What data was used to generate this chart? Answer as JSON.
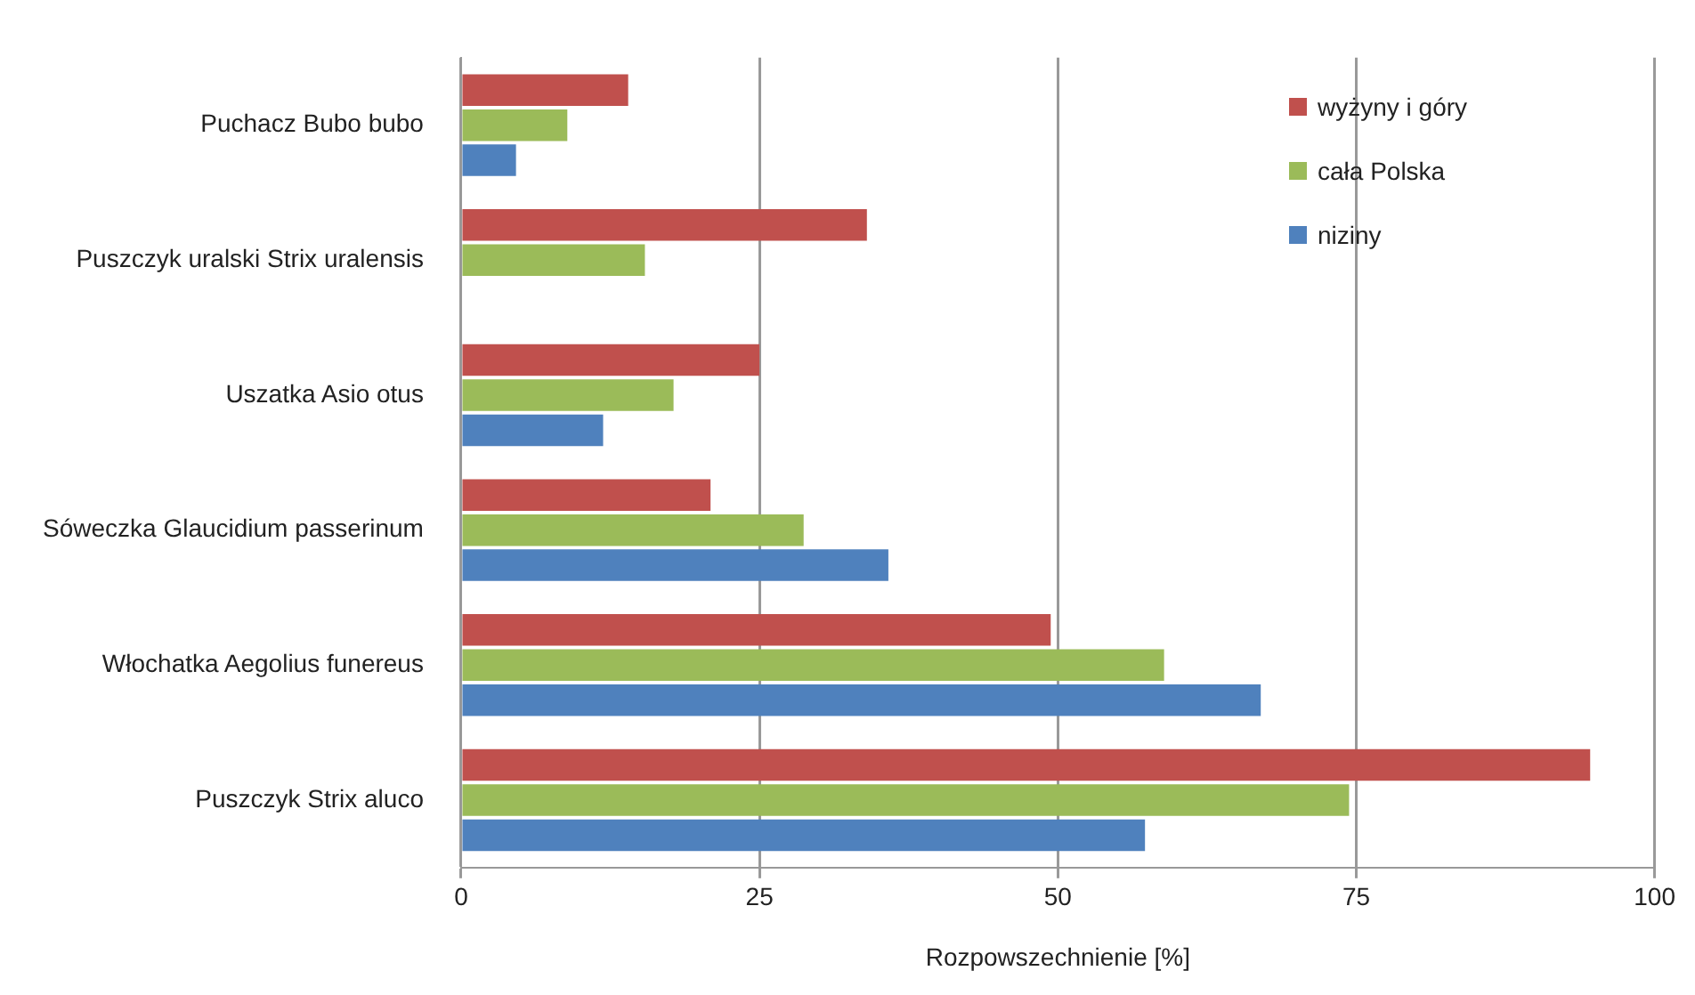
{
  "chart_data": {
    "type": "bar",
    "orientation": "horizontal",
    "xlabel": "Rozpowszechnienie [%]",
    "categories": [
      "Puchacz Bubo bubo",
      "Puszczyk uralski Strix uralensis",
      "Uszatka Asio otus",
      "Sóweczka Glaucidium passerinum",
      "Włochatka Aegolius funereus",
      "Puszczyk Strix aluco"
    ],
    "series": [
      {
        "name": "wyżyny i góry",
        "color": "#c0504d",
        "values": [
          14,
          34,
          25,
          20.9,
          49.4,
          94.6
        ]
      },
      {
        "name": "cała Polska",
        "color": "#9bbb59",
        "values": [
          8.9,
          15.4,
          17.8,
          28.7,
          58.9,
          74.4
        ]
      },
      {
        "name": "niziny",
        "color": "#4f81bd",
        "values": [
          4.6,
          null,
          11.9,
          35.8,
          67,
          57.3
        ]
      }
    ],
    "xlim": [
      0,
      100
    ],
    "xticks": [
      0,
      25,
      50,
      75,
      100
    ],
    "grid": "x",
    "legend": "top right"
  }
}
